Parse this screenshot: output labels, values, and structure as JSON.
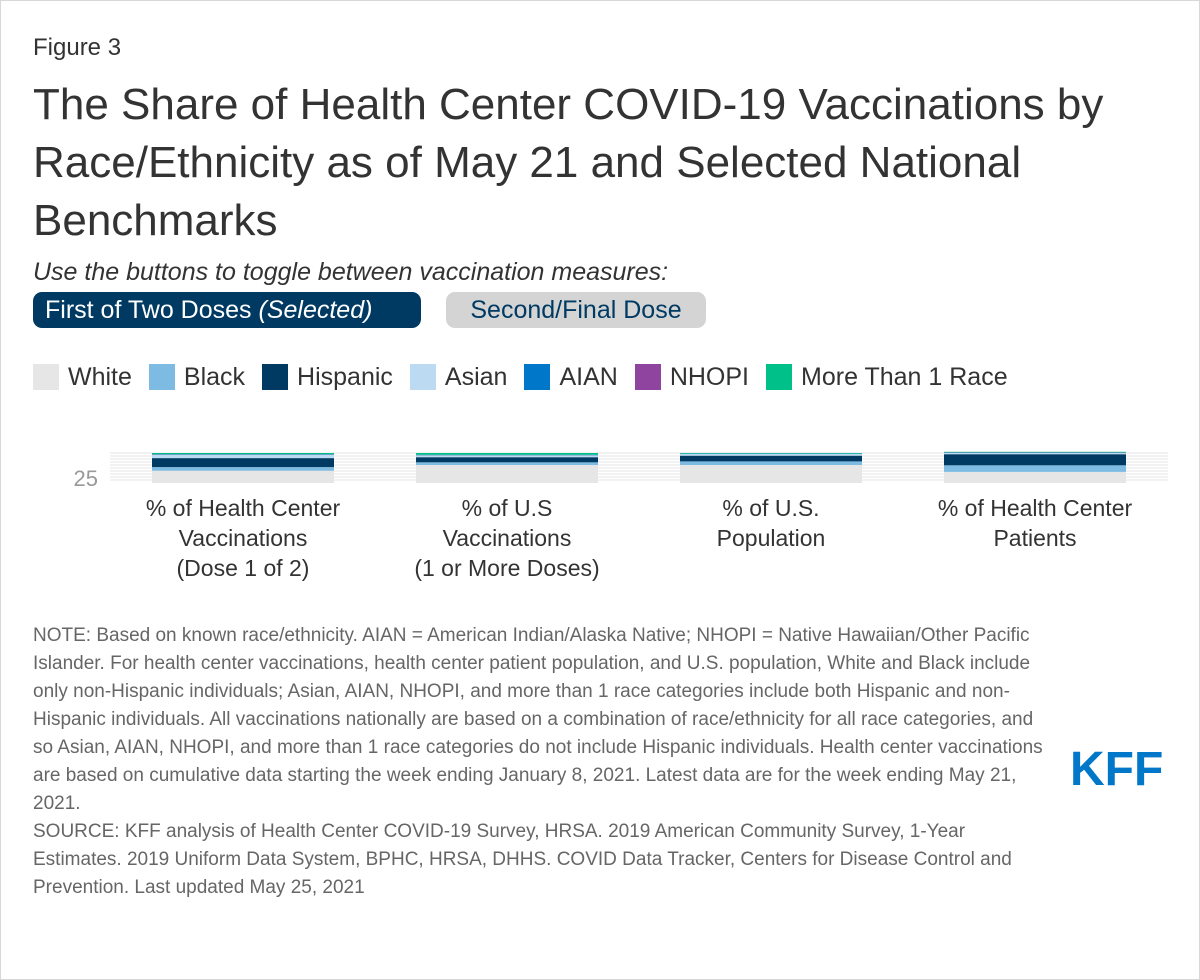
{
  "figure_label": "Figure 3",
  "title": "The Share of Health Center COVID-19 Vaccinations by Race/Ethnicity as of May 21 and Selected National Benchmarks",
  "subtitle": "Use the buttons to toggle between vaccination measures:",
  "buttons": {
    "first_label": "First of Two Doses",
    "first_suffix": "(Selected)",
    "second_label": "Second/Final Dose"
  },
  "colors": {
    "White": "#e6e6e6",
    "Black": "#7ebbe2",
    "Hispanic": "#003a63",
    "Asian": "#bcdaf1",
    "AIAN": "#0077c8",
    "NHOPI": "#8f44a0",
    "More Than 1 Race": "#00c08a"
  },
  "chart_data": {
    "type": "bar",
    "stacked": true,
    "title": "",
    "xlabel": "",
    "ylabel": "",
    "ylim": [
      0,
      400
    ],
    "yticks": [
      25
    ],
    "categories": [
      [
        "% of Health Center",
        "Vaccinations",
        "(Dose 1 of 2)"
      ],
      [
        "% of U.S",
        "Vaccinations",
        "(1 or More Doses)"
      ],
      [
        "% of U.S.",
        "Population"
      ],
      [
        "% of Health Center",
        "Patients"
      ]
    ],
    "series": [
      {
        "name": "White",
        "values": [
          41,
          60,
          60,
          37
        ]
      },
      {
        "name": "Black",
        "values": [
          12,
          9,
          12,
          22
        ]
      },
      {
        "name": "Hispanic",
        "values": [
          30,
          17,
          19,
          37
        ]
      },
      {
        "name": "Asian",
        "values": [
          11,
          6,
          6,
          4
        ]
      },
      {
        "name": "AIAN",
        "values": [
          1,
          1,
          1,
          1
        ]
      },
      {
        "name": "NHOPI",
        "values": [
          1,
          1,
          0,
          1
        ]
      },
      {
        "name": "More Than 1 Race",
        "values": [
          4,
          6,
          2,
          2
        ]
      }
    ]
  },
  "notes": {
    "note": "NOTE: Based on known race/ethnicity. AIAN = American Indian/Alaska Native; NHOPI = Native Hawaiian/Other Pacific Islander. For health center vaccinations, health center patient population, and U.S. population, White and Black include only non-Hispanic individuals; Asian, AIAN, NHOPI, and more than 1 race categories include both Hispanic and non-Hispanic individuals. All vaccinations nationally are based on a combination of race/ethnicity for all race categories, and so Asian, AIAN, NHOPI, and more than 1 race categories do not include Hispanic individuals. Health center vaccinations are based on cumulative data starting the week ending January 8, 2021. Latest data are for the week ending May 21, 2021.",
    "source": "SOURCE: KFF analysis of Health Center COVID-19 Survey, HRSA. 2019 American Community Survey, 1-Year Estimates. 2019 Uniform Data System, BPHC, HRSA, DHHS. COVID Data Tracker, Centers for Disease Control and Prevention. Last updated May 25, 2021"
  },
  "logo_text": "KFF"
}
